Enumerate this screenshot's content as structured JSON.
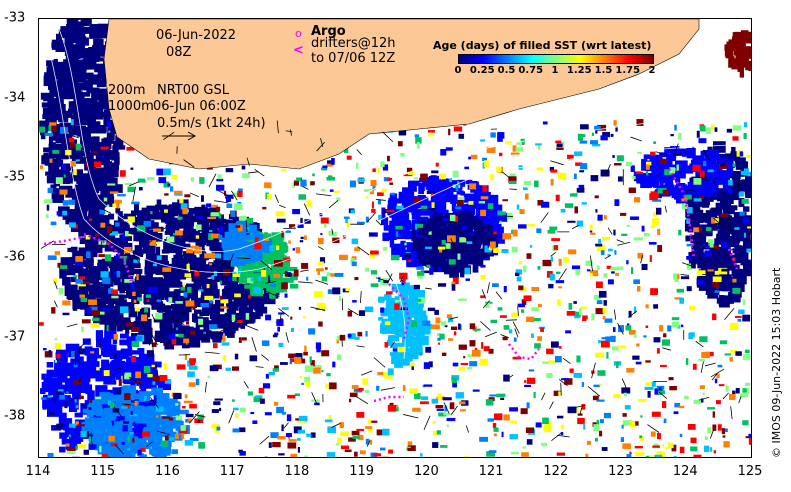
{
  "header": {
    "date": "06-Jun-2022",
    "hour": "08Z",
    "argo_label": "Argo",
    "drifters_line1": "drifters@12h",
    "drifters_line2": "to 07/06 12Z",
    "contours_line1": "200m",
    "contours_line2": "1000m",
    "product": "NRT00 GSL",
    "product_time": "06-Jun 06:00Z",
    "vector_scale": "0.5m/s (1kt 24h)"
  },
  "legend": {
    "title": "Age (days) of filled SST (wrt latest)",
    "ticks": [
      "0",
      "0.25",
      "0.5",
      "0.75",
      "1",
      "1.25",
      "1.5",
      "1.75",
      "2"
    ],
    "colors": [
      "#00007f",
      "#0000ff",
      "#0080ff",
      "#00ffff",
      "#80ff80",
      "#ffff00",
      "#ff8000",
      "#ff0000",
      "#7f0000"
    ]
  },
  "axes": {
    "x_ticks": [
      "114",
      "115",
      "116",
      "117",
      "118",
      "119",
      "120",
      "121",
      "122",
      "123",
      "124",
      "125"
    ],
    "y_ticks": [
      "-33",
      "-34",
      "-35",
      "-36",
      "-37",
      "-38"
    ],
    "xlim": [
      114,
      125
    ],
    "ylim": [
      -38.5,
      -33
    ]
  },
  "credit": "© IMOS 09-Jun-2022 15:03 Hobart",
  "colors": {
    "land": "#fcc896",
    "sea_fresh": "#ffffff",
    "argo": "#ff00ff",
    "drifter": "#ff00ff"
  }
}
